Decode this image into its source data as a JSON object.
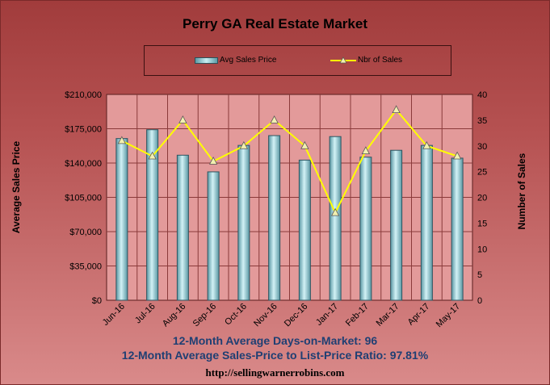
{
  "chart_data": {
    "type": "bar",
    "title": "Perry GA Real Estate Market",
    "categories": [
      "Jun-16",
      "Jul-16",
      "Aug-16",
      "Sep-16",
      "Oct-16",
      "Nov-16",
      "Dec-16",
      "Jan-17",
      "Feb-17",
      "Mar-17",
      "Apr-17",
      "May-17"
    ],
    "series": [
      {
        "name": "Avg Sales Price",
        "type": "bar",
        "axis": "left",
        "values": [
          165000,
          174000,
          148000,
          131000,
          158000,
          168000,
          143000,
          167000,
          146000,
          153000,
          158000,
          145000
        ]
      },
      {
        "name": "Nbr of Sales",
        "type": "line",
        "axis": "right",
        "values": [
          31,
          28,
          35,
          27,
          30,
          35,
          30,
          17,
          29,
          37,
          30,
          28
        ]
      }
    ],
    "ylabel": "Average Sales Price",
    "y2label": "Number of Sales",
    "ylim": [
      0,
      210000
    ],
    "y2lim": [
      0,
      40
    ],
    "yticks": [
      "$0",
      "$35,000",
      "$70,000",
      "$105,000",
      "$140,000",
      "$175,000",
      "$210,000"
    ],
    "y2ticks": [
      "0",
      "5",
      "10",
      "15",
      "20",
      "25",
      "30",
      "35",
      "40"
    ],
    "grid": true,
    "legend": "top",
    "colors": {
      "bar": "#8cc8d2",
      "line": "#ffff00",
      "marker": "#f2f0b0",
      "plot_bg": "#e39a9a"
    }
  },
  "footer": {
    "line1": "12-Month Average Days-on-Market: 96",
    "line2": "12-Month Average Sales-Price to List-Price Ratio: 97.81%",
    "url": "http://sellingwarnerrobins.com"
  }
}
